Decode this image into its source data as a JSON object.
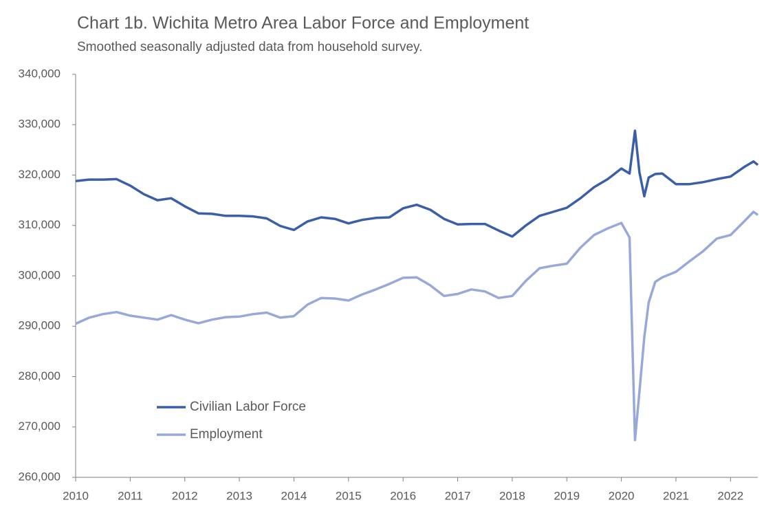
{
  "chart_data": {
    "type": "line",
    "title": "Chart 1b. Wichita Metro Area Labor Force and Employment",
    "subtitle": "Smoothed seasonally adjusted data from household survey.",
    "x": [
      2010,
      2010.25,
      2010.5,
      2010.75,
      2011,
      2011.25,
      2011.5,
      2011.75,
      2012,
      2012.25,
      2012.5,
      2012.75,
      2013,
      2013.25,
      2013.5,
      2013.75,
      2014,
      2014.25,
      2014.5,
      2014.75,
      2015,
      2015.25,
      2015.5,
      2015.75,
      2016,
      2016.25,
      2016.5,
      2016.75,
      2017,
      2017.25,
      2017.5,
      2017.75,
      2018,
      2018.25,
      2018.5,
      2018.75,
      2019,
      2019.25,
      2019.5,
      2019.75,
      2020,
      2020.15,
      2020.25,
      2020.33,
      2020.42,
      2020.5,
      2020.62,
      2020.75,
      2021,
      2021.25,
      2021.5,
      2021.75,
      2022,
      2022.25,
      2022.42,
      2022.5
    ],
    "series": [
      {
        "name": "Civilian Labor Force",
        "color": "#3a5fa8",
        "values": [
          318800,
          319100,
          319100,
          319200,
          317900,
          316200,
          315000,
          315400,
          313800,
          312400,
          312300,
          311900,
          311900,
          311800,
          311400,
          309900,
          309100,
          310800,
          311600,
          311300,
          310400,
          311100,
          311500,
          311600,
          313400,
          314100,
          313100,
          311300,
          310200,
          310300,
          310300,
          309000,
          307800,
          310000,
          311900,
          312700,
          313500,
          315400,
          317600,
          319200,
          321300,
          320300,
          328800,
          320600,
          315800,
          319500,
          320200,
          320300,
          318200,
          318200,
          318600,
          319200,
          319700,
          321600,
          322700,
          322000
        ]
      },
      {
        "name": "Employment",
        "color": "#97a9d8",
        "values": [
          290500,
          291700,
          292400,
          292800,
          292100,
          291700,
          291300,
          292200,
          291300,
          290600,
          291300,
          291800,
          291900,
          292400,
          292700,
          291700,
          292000,
          294300,
          295600,
          295500,
          295100,
          296300,
          297300,
          298400,
          299600,
          299700,
          298100,
          296000,
          296400,
          297300,
          296900,
          295600,
          296000,
          299000,
          301500,
          302000,
          302400,
          305600,
          308100,
          309400,
          310500,
          307600,
          267400,
          276900,
          287800,
          294700,
          298800,
          299700,
          300800,
          302900,
          304900,
          307400,
          308100,
          310800,
          312700,
          312100
        ]
      }
    ],
    "xlim": [
      2010,
      2022.5
    ],
    "xticks": [
      2010,
      2011,
      2012,
      2013,
      2014,
      2015,
      2016,
      2017,
      2018,
      2019,
      2020,
      2021,
      2022
    ],
    "ylim": [
      260000,
      340000
    ],
    "yticks": [
      {
        "value": 260000,
        "label": "260,000"
      },
      {
        "value": 270000,
        "label": "270,000"
      },
      {
        "value": 280000,
        "label": "280,000"
      },
      {
        "value": 290000,
        "label": "290,000"
      },
      {
        "value": 300000,
        "label": "300,000"
      },
      {
        "value": 310000,
        "label": "310,000"
      },
      {
        "value": 320000,
        "label": "320,000"
      },
      {
        "value": 330000,
        "label": "330,000"
      },
      {
        "value": 340000,
        "label": "340,000"
      }
    ],
    "grid": false,
    "legend": "lower-left"
  }
}
